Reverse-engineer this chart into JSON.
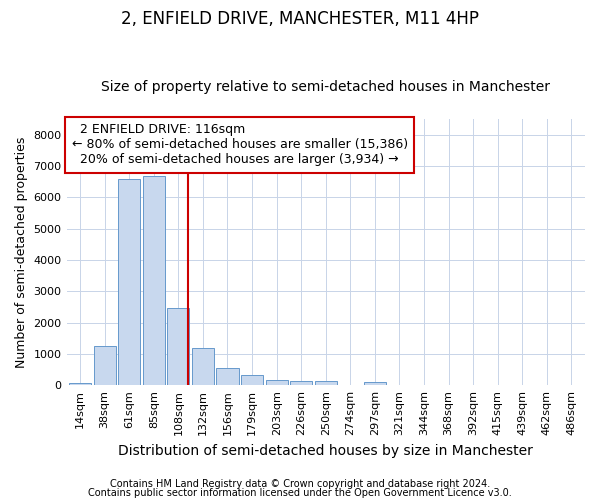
{
  "title": "2, ENFIELD DRIVE, MANCHESTER, M11 4HP",
  "subtitle": "Size of property relative to semi-detached houses in Manchester",
  "xlabel": "Distribution of semi-detached houses by size in Manchester",
  "ylabel": "Number of semi-detached properties",
  "categories": [
    "14sqm",
    "38sqm",
    "61sqm",
    "85sqm",
    "108sqm",
    "132sqm",
    "156sqm",
    "179sqm",
    "203sqm",
    "226sqm",
    "250sqm",
    "274sqm",
    "297sqm",
    "321sqm",
    "344sqm",
    "368sqm",
    "392sqm",
    "415sqm",
    "439sqm",
    "462sqm",
    "486sqm"
  ],
  "values": [
    80,
    1250,
    6600,
    6700,
    2480,
    1200,
    540,
    340,
    175,
    130,
    125,
    0,
    100,
    0,
    0,
    0,
    0,
    0,
    0,
    0,
    0
  ],
  "bar_color": "#c8d8ee",
  "bar_edge_color": "#6699cc",
  "vline_color": "#cc0000",
  "vline_pos": 4.38,
  "annotation_text": "  2 ENFIELD DRIVE: 116sqm  \n← 80% of semi-detached houses are smaller (15,386)\n  20% of semi-detached houses are larger (3,934) →",
  "annotation_box_color": "#ffffff",
  "annotation_box_edge_color": "#cc0000",
  "footer_line1": "Contains HM Land Registry data © Crown copyright and database right 2024.",
  "footer_line2": "Contains public sector information licensed under the Open Government Licence v3.0.",
  "ylim": [
    0,
    8500
  ],
  "yticks": [
    0,
    1000,
    2000,
    3000,
    4000,
    5000,
    6000,
    7000,
    8000
  ],
  "background_color": "#ffffff",
  "grid_color": "#c8d4e8",
  "title_fontsize": 12,
  "subtitle_fontsize": 10,
  "xlabel_fontsize": 10,
  "ylabel_fontsize": 9,
  "tick_fontsize": 8,
  "annotation_fontsize": 9,
  "footer_fontsize": 7
}
